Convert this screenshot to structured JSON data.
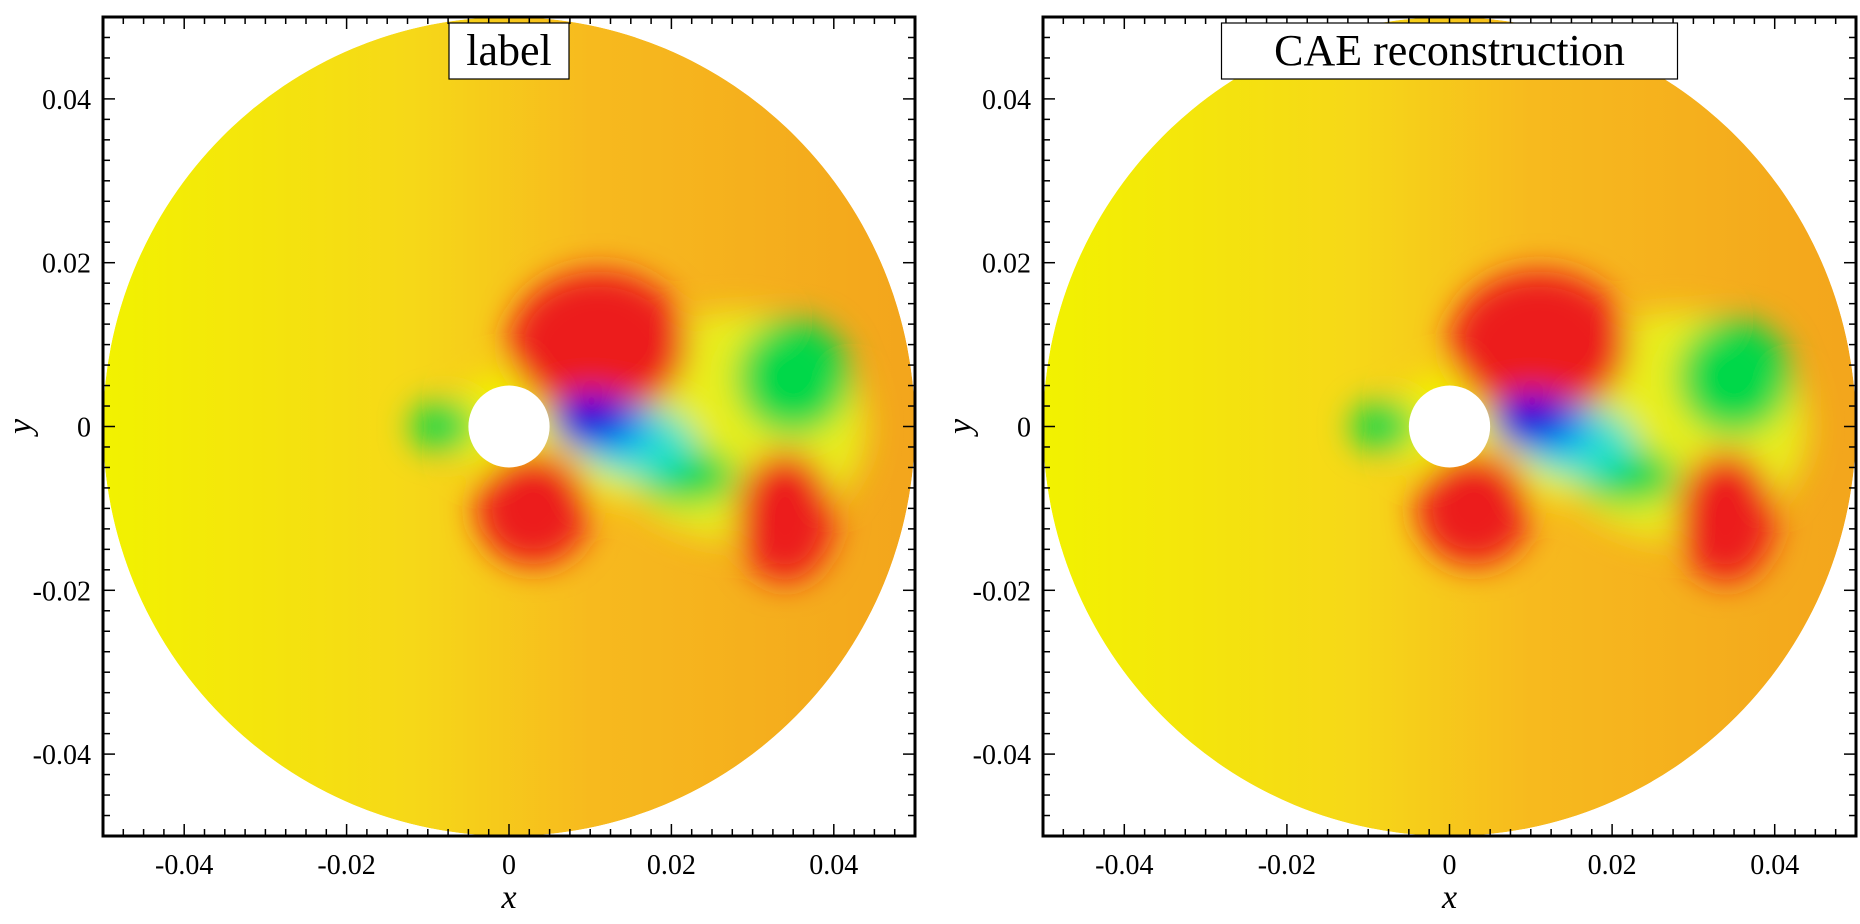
{
  "chart_data": [
    {
      "type": "heatmap",
      "title": "label",
      "xlabel": "x",
      "ylabel": "y",
      "xlim": [
        -0.05,
        0.05
      ],
      "ylim": [
        -0.05,
        0.05
      ],
      "x_ticks": [
        "-0.04",
        "-0.02",
        "0",
        "0.02",
        "0.04"
      ],
      "y_ticks": [
        "0.04",
        "0.02",
        "0",
        "-0.02",
        "-0.04"
      ],
      "domain": {
        "shape": "disk",
        "outer_radius": 0.05,
        "cylinder_center": [
          0,
          0
        ],
        "cylinder_radius": 0.005
      },
      "colormap": [
        "#0000e0",
        "#00e0ff",
        "#00d84a",
        "#f2f200",
        "#f3a51c",
        "#ec1f1f"
      ],
      "background_color": "#f7ba1e",
      "features": [
        {
          "kind": "high",
          "x": 0.011,
          "y": 0.01,
          "rx": 0.011,
          "ry": 0.009,
          "color": "#ec1f1f"
        },
        {
          "kind": "high",
          "x": 0.003,
          "y": -0.01,
          "rx": 0.007,
          "ry": 0.007,
          "color": "#ec1f1f"
        },
        {
          "kind": "high",
          "x": 0.034,
          "y": -0.011,
          "rx": 0.006,
          "ry": 0.008,
          "color": "#ec1f1f"
        },
        {
          "kind": "low",
          "x": 0.035,
          "y": 0.006,
          "rx": 0.007,
          "ry": 0.007,
          "color": "#00d84a"
        },
        {
          "kind": "low",
          "x": 0.012,
          "y": 0.0,
          "rx": 0.006,
          "ry": 0.0035,
          "color": "#0000e0"
        },
        {
          "kind": "wake",
          "x": 0.022,
          "y": -0.006,
          "rx": 0.006,
          "ry": 0.0035,
          "color": "#00d84a"
        },
        {
          "kind": "upstream",
          "x": -0.008,
          "y": 0.0,
          "rx": 0.004,
          "ry": 0.003,
          "color": "#00d84a"
        }
      ]
    },
    {
      "type": "heatmap",
      "title": "CAE reconstruction",
      "xlabel": "x",
      "ylabel": "y",
      "xlim": [
        -0.05,
        0.05
      ],
      "ylim": [
        -0.05,
        0.05
      ],
      "x_ticks": [
        "-0.04",
        "-0.02",
        "0",
        "0.02",
        "0.04"
      ],
      "y_ticks": [
        "0.04",
        "0.02",
        "0",
        "-0.02",
        "-0.04"
      ],
      "domain": {
        "shape": "disk",
        "outer_radius": 0.05,
        "cylinder_center": [
          0,
          0
        ],
        "cylinder_radius": 0.005
      },
      "colormap": [
        "#0000e0",
        "#00e0ff",
        "#00d84a",
        "#f2f200",
        "#f3a51c",
        "#ec1f1f"
      ],
      "background_color": "#f7ba1e",
      "features": [
        {
          "kind": "high",
          "x": 0.011,
          "y": 0.01,
          "rx": 0.011,
          "ry": 0.009,
          "color": "#ec1f1f"
        },
        {
          "kind": "high",
          "x": 0.003,
          "y": -0.01,
          "rx": 0.007,
          "ry": 0.007,
          "color": "#ec1f1f"
        },
        {
          "kind": "high",
          "x": 0.034,
          "y": -0.011,
          "rx": 0.006,
          "ry": 0.008,
          "color": "#ec1f1f"
        },
        {
          "kind": "low",
          "x": 0.035,
          "y": 0.006,
          "rx": 0.007,
          "ry": 0.007,
          "color": "#00d84a"
        },
        {
          "kind": "low",
          "x": 0.012,
          "y": 0.0,
          "rx": 0.006,
          "ry": 0.0035,
          "color": "#0000e0"
        },
        {
          "kind": "wake",
          "x": 0.022,
          "y": -0.006,
          "rx": 0.006,
          "ry": 0.0035,
          "color": "#00d84a"
        },
        {
          "kind": "upstream",
          "x": -0.008,
          "y": 0.0,
          "rx": 0.004,
          "ry": 0.003,
          "color": "#00d84a"
        }
      ]
    }
  ]
}
